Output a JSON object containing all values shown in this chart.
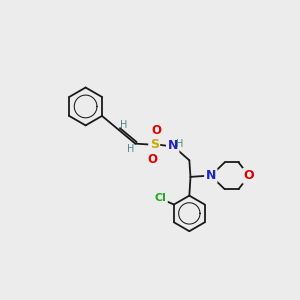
{
  "background_color": "#ececec",
  "bond_color": "#1a1a1a",
  "S_color": "#ccaa00",
  "O_color": "#dd0000",
  "N_color": "#2222cc",
  "H_color": "#4a8888",
  "Cl_color": "#22aa22",
  "lw": 1.3,
  "xlim": [
    0,
    10
  ],
  "ylim": [
    0,
    10
  ]
}
